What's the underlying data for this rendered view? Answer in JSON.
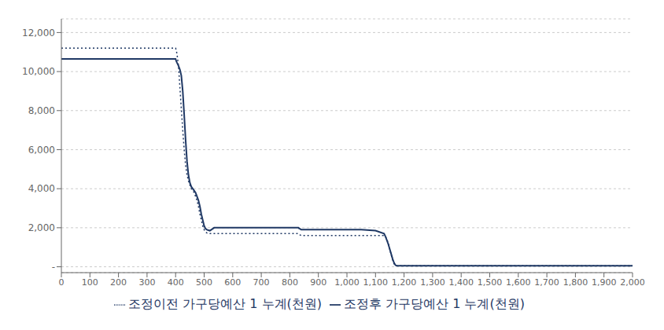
{
  "chart_data": {
    "type": "line",
    "title": "",
    "xlabel": "",
    "ylabel": "",
    "xlim": [
      0,
      2000
    ],
    "ylim": [
      -300,
      12700
    ],
    "xticks": [
      0,
      100,
      200,
      300,
      400,
      500,
      600,
      700,
      800,
      900,
      {
        "value": 1000,
        "label": "1,000"
      },
      {
        "value": 1100,
        "label": "1,100"
      },
      {
        "value": 1200,
        "label": "1,200"
      },
      {
        "value": 1300,
        "label": "1,300"
      },
      {
        "value": 1400,
        "label": "1,400"
      },
      {
        "value": 1500,
        "label": "1,500"
      },
      {
        "value": 1600,
        "label": "1,600"
      },
      {
        "value": 1700,
        "label": "1,700"
      },
      {
        "value": 1800,
        "label": "1,800"
      },
      {
        "value": 1900,
        "label": "1,900"
      },
      {
        "value": 2000,
        "label": "2,000"
      }
    ],
    "yticks": [
      {
        "value": 0,
        "label": "-"
      },
      {
        "value": 2000,
        "label": "2,000"
      },
      {
        "value": 4000,
        "label": "4,000"
      },
      {
        "value": 6000,
        "label": "6,000"
      },
      {
        "value": 8000,
        "label": "8,000"
      },
      {
        "value": 10000,
        "label": "10,000"
      },
      {
        "value": 12000,
        "label": "12,000"
      }
    ],
    "grid": true,
    "legend": "bottom",
    "series": [
      {
        "name": "조정이전 가구당예산 1 누계(천원)",
        "color": "#1F3864",
        "line_style": "dotted",
        "x": [
          0,
          398,
          399,
          400,
          401,
          402,
          405,
          410,
          415,
          420,
          425,
          430,
          435,
          440,
          445,
          450,
          455,
          460,
          465,
          470,
          475,
          480,
          485,
          490,
          495,
          500,
          505,
          510,
          515,
          520,
          525,
          530,
          535,
          545,
          550,
          830,
          831,
          832,
          835,
          840,
          1130,
          1135,
          1140,
          1145,
          1150,
          1155,
          1160,
          1165,
          1170,
          1175,
          2000
        ],
        "values": [
          11200,
          11200,
          11200,
          11200,
          11150,
          11100,
          10900,
          10300,
          9200,
          8100,
          7000,
          6000,
          5200,
          4700,
          4400,
          4200,
          4000,
          3900,
          3800,
          3600,
          3400,
          3100,
          2700,
          2400,
          2100,
          1900,
          1780,
          1730,
          1710,
          1700,
          1700,
          1700,
          1700,
          1700,
          1700,
          1700,
          1690,
          1670,
          1640,
          1600,
          1600,
          1550,
          1400,
          1200,
          900,
          600,
          350,
          150,
          50,
          50,
          50
        ]
      },
      {
        "name": "조정후 가구당예산 1 누계(천원)",
        "color": "#1F3864",
        "line_style": "solid",
        "x": [
          0,
          398,
          399,
          400,
          401,
          402,
          405,
          410,
          415,
          420,
          425,
          430,
          435,
          440,
          445,
          450,
          455,
          460,
          465,
          470,
          475,
          480,
          485,
          490,
          495,
          500,
          505,
          510,
          515,
          520,
          525,
          530,
          535,
          545,
          550,
          830,
          831,
          832,
          835,
          840,
          850,
          900,
          950,
          1000,
          1050,
          1100,
          1130,
          1135,
          1140,
          1145,
          1150,
          1155,
          1160,
          1165,
          1170,
          1175,
          1200,
          2000
        ],
        "values": [
          10650,
          10650,
          10650,
          10650,
          10600,
          10550,
          10450,
          10300,
          10100,
          9800,
          9000,
          7800,
          6500,
          5400,
          4700,
          4300,
          4100,
          4000,
          3900,
          3800,
          3600,
          3400,
          3100,
          2700,
          2400,
          2100,
          1950,
          1900,
          1870,
          1850,
          1900,
          1950,
          2000,
          2000,
          2000,
          2000,
          1990,
          1970,
          1950,
          1900,
          1900,
          1900,
          1900,
          1900,
          1900,
          1850,
          1700,
          1550,
          1350,
          1150,
          900,
          650,
          400,
          200,
          80,
          50,
          50,
          50
        ]
      }
    ]
  }
}
